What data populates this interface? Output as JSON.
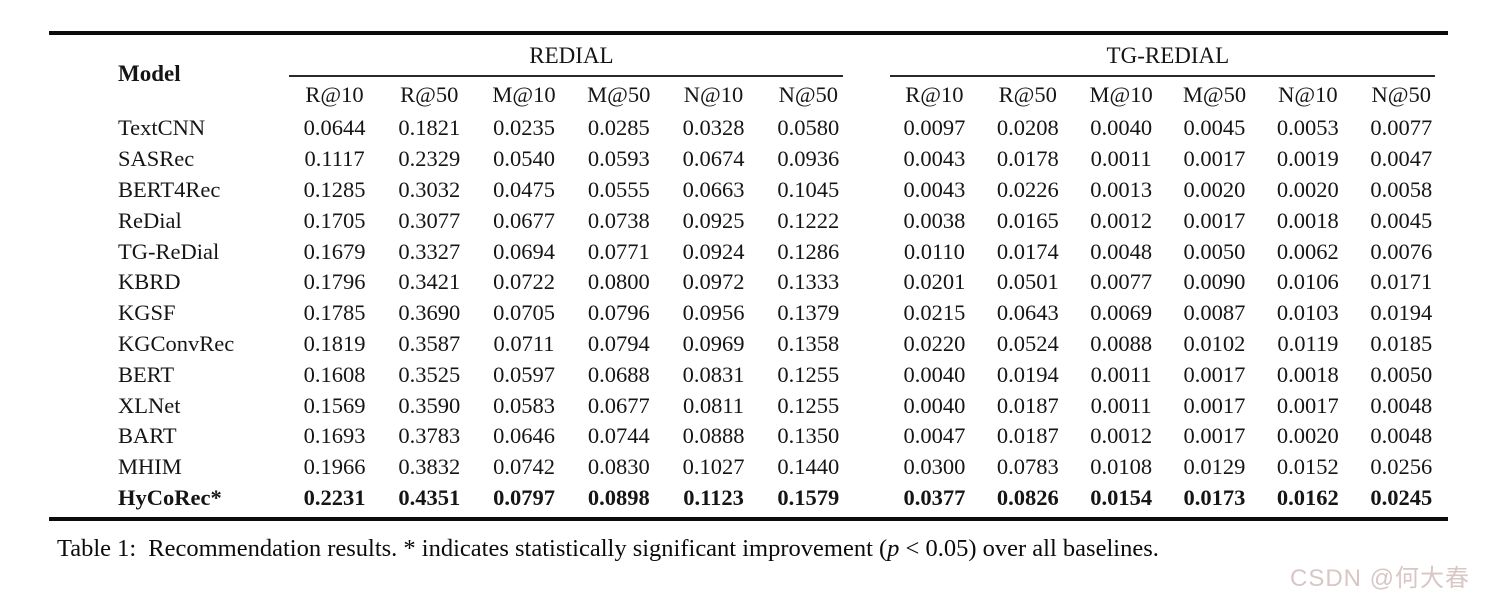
{
  "table": {
    "model_header": "Model",
    "groups": [
      {
        "id": "redial",
        "label": "REDIAL",
        "metrics": [
          "R@10",
          "R@50",
          "M@10",
          "M@50",
          "N@10",
          "N@50"
        ]
      },
      {
        "id": "tg-redial",
        "label": "TG-REDIAL",
        "metrics": [
          "R@10",
          "R@50",
          "M@10",
          "M@50",
          "N@10",
          "N@50"
        ]
      }
    ],
    "rows": [
      {
        "model": "TextCNN",
        "bold": false,
        "redial": [
          "0.0644",
          "0.1821",
          "0.0235",
          "0.0285",
          "0.0328",
          "0.0580"
        ],
        "tg_redial": [
          "0.0097",
          "0.0208",
          "0.0040",
          "0.0045",
          "0.0053",
          "0.0077"
        ]
      },
      {
        "model": "SASRec",
        "bold": false,
        "redial": [
          "0.1117",
          "0.2329",
          "0.0540",
          "0.0593",
          "0.0674",
          "0.0936"
        ],
        "tg_redial": [
          "0.0043",
          "0.0178",
          "0.0011",
          "0.0017",
          "0.0019",
          "0.0047"
        ]
      },
      {
        "model": "BERT4Rec",
        "bold": false,
        "redial": [
          "0.1285",
          "0.3032",
          "0.0475",
          "0.0555",
          "0.0663",
          "0.1045"
        ],
        "tg_redial": [
          "0.0043",
          "0.0226",
          "0.0013",
          "0.0020",
          "0.0020",
          "0.0058"
        ]
      },
      {
        "model": "ReDial",
        "bold": false,
        "redial": [
          "0.1705",
          "0.3077",
          "0.0677",
          "0.0738",
          "0.0925",
          "0.1222"
        ],
        "tg_redial": [
          "0.0038",
          "0.0165",
          "0.0012",
          "0.0017",
          "0.0018",
          "0.0045"
        ]
      },
      {
        "model": "TG-ReDial",
        "bold": false,
        "redial": [
          "0.1679",
          "0.3327",
          "0.0694",
          "0.0771",
          "0.0924",
          "0.1286"
        ],
        "tg_redial": [
          "0.0110",
          "0.0174",
          "0.0048",
          "0.0050",
          "0.0062",
          "0.0076"
        ]
      },
      {
        "model": "KBRD",
        "bold": false,
        "redial": [
          "0.1796",
          "0.3421",
          "0.0722",
          "0.0800",
          "0.0972",
          "0.1333"
        ],
        "tg_redial": [
          "0.0201",
          "0.0501",
          "0.0077",
          "0.0090",
          "0.0106",
          "0.0171"
        ]
      },
      {
        "model": "KGSF",
        "bold": false,
        "redial": [
          "0.1785",
          "0.3690",
          "0.0705",
          "0.0796",
          "0.0956",
          "0.1379"
        ],
        "tg_redial": [
          "0.0215",
          "0.0643",
          "0.0069",
          "0.0087",
          "0.0103",
          "0.0194"
        ]
      },
      {
        "model": "KGConvRec",
        "bold": false,
        "redial": [
          "0.1819",
          "0.3587",
          "0.0711",
          "0.0794",
          "0.0969",
          "0.1358"
        ],
        "tg_redial": [
          "0.0220",
          "0.0524",
          "0.0088",
          "0.0102",
          "0.0119",
          "0.0185"
        ]
      },
      {
        "model": "BERT",
        "bold": false,
        "redial": [
          "0.1608",
          "0.3525",
          "0.0597",
          "0.0688",
          "0.0831",
          "0.1255"
        ],
        "tg_redial": [
          "0.0040",
          "0.0194",
          "0.0011",
          "0.0017",
          "0.0018",
          "0.0050"
        ]
      },
      {
        "model": "XLNet",
        "bold": false,
        "redial": [
          "0.1569",
          "0.3590",
          "0.0583",
          "0.0677",
          "0.0811",
          "0.1255"
        ],
        "tg_redial": [
          "0.0040",
          "0.0187",
          "0.0011",
          "0.0017",
          "0.0017",
          "0.0048"
        ]
      },
      {
        "model": "BART",
        "bold": false,
        "redial": [
          "0.1693",
          "0.3783",
          "0.0646",
          "0.0744",
          "0.0888",
          "0.1350"
        ],
        "tg_redial": [
          "0.0047",
          "0.0187",
          "0.0012",
          "0.0017",
          "0.0020",
          "0.0048"
        ]
      },
      {
        "model": "MHIM",
        "bold": false,
        "redial": [
          "0.1966",
          "0.3832",
          "0.0742",
          "0.0830",
          "0.1027",
          "0.1440"
        ],
        "tg_redial": [
          "0.0300",
          "0.0783",
          "0.0108",
          "0.0129",
          "0.0152",
          "0.0256"
        ]
      },
      {
        "model": "HyCoRec*",
        "bold": true,
        "redial": [
          "0.2231",
          "0.4351",
          "0.0797",
          "0.0898",
          "0.1123",
          "0.1579"
        ],
        "tg_redial": [
          "0.0377",
          "0.0826",
          "0.0154",
          "0.0173",
          "0.0162",
          "0.0245"
        ]
      }
    ]
  },
  "caption": {
    "prefix": "Table 1:",
    "before_p": "Recommendation results. * indicates statistically significant improvement (",
    "p_symbol": "p",
    "after_p": " < 0.05) over all baselines."
  },
  "watermark": {
    "text": "CSDN @何大春",
    "color": "#d9c6c6"
  }
}
